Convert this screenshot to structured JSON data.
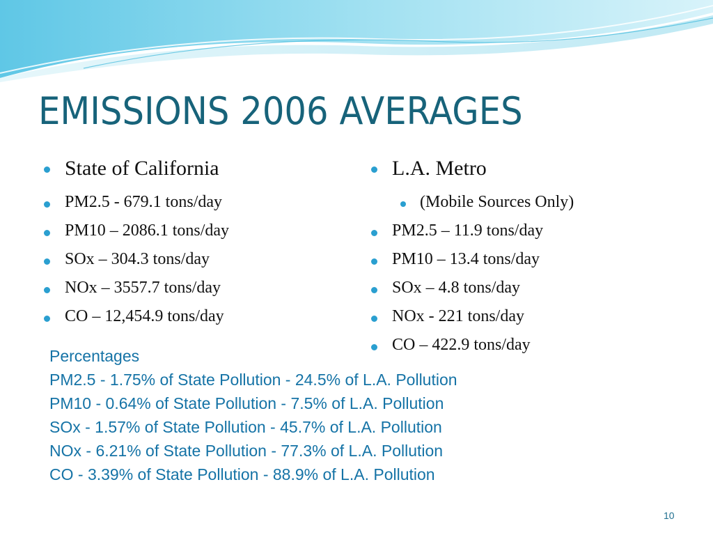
{
  "title": "EMISSIONS 2006 AVERAGES",
  "left_column": {
    "heading": "State of California",
    "items": [
      "PM2.5 - 679.1 tons/day",
      "PM10 – 2086.1 tons/day",
      "SOx – 304.3 tons/day",
      "NOx – 3557.7 tons/day",
      "CO – 12,454.9 tons/day"
    ]
  },
  "right_column": {
    "heading": "L.A. Metro",
    "subheading": "(Mobile Sources Only)",
    "items": [
      "PM2.5 – 11.9 tons/day",
      "PM10 – 13.4 tons/day",
      "SOx – 4.8 tons/day",
      "NOx - 221 tons/day",
      "CO – 422.9 tons/day"
    ]
  },
  "percentages": {
    "heading": "Percentages",
    "lines": [
      "PM2.5 - 1.75% of State Pollution - 24.5% of L.A. Pollution",
      "PM10 - 0.64% of State Pollution - 7.5% of L.A. Pollution",
      "SOx - 1.57% of State Pollution - 45.7% of L.A. Pollution",
      "NOx - 6.21% of State Pollution - 77.3% of L.A. Pollution",
      "CO - 3.39% of State Pollution - 88.9% of L.A. Pollution"
    ]
  },
  "page_number": "10",
  "colors": {
    "title": "#17637a",
    "bullet": "#2a9fd0",
    "percent_text": "#1573a6",
    "wave_light": "#bfe9f4",
    "wave_mid": "#7fd3ea",
    "wave_deep": "#3cb8dc"
  }
}
